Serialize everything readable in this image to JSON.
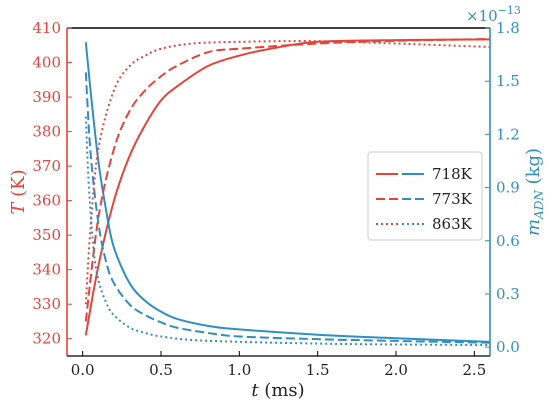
{
  "chart_data": {
    "type": "line",
    "x_label": "t",
    "x_unit": "(ms)",
    "y_left_label": "T",
    "y_left_unit": "(K)",
    "y_right_label": "m",
    "y_right_subscript": "ADN",
    "y_right_unit": "(kg)",
    "y_right_scale_base": "×10",
    "y_right_scale_exp": "−13",
    "xlim": [
      -0.1,
      2.6
    ],
    "ylim_left": [
      315,
      410
    ],
    "ylim_right": [
      -0.05,
      1.8
    ],
    "x_ticks": [
      "0.0",
      "0.5",
      "1.0",
      "1.5",
      "2.0",
      "2.5"
    ],
    "x_tick_values": [
      0,
      0.5,
      1.0,
      1.5,
      2.0,
      2.5
    ],
    "y_left_ticks": [
      "320",
      "330",
      "340",
      "350",
      "360",
      "370",
      "380",
      "390",
      "400",
      "410"
    ],
    "y_left_tick_values": [
      320,
      330,
      340,
      350,
      360,
      370,
      380,
      390,
      400,
      410
    ],
    "y_right_ticks": [
      "0.0",
      "0.3",
      "0.6",
      "0.9",
      "1.2",
      "1.5",
      "1.8"
    ],
    "y_right_tick_values": [
      0,
      0.3,
      0.6,
      0.9,
      1.2,
      1.5,
      1.8
    ],
    "colors": {
      "temperature": "#e8433a",
      "mass": "#2f8fc4"
    },
    "legend_position": "center-right",
    "series": [
      {
        "name": "718K",
        "style": "solid",
        "temperature": {
          "x": [
            0.02,
            0.1,
            0.2,
            0.3,
            0.4,
            0.5,
            0.6,
            0.8,
            1.0,
            1.2,
            1.5,
            2.0,
            2.6
          ],
          "y": [
            321,
            341,
            360,
            373,
            382,
            389,
            393,
            399,
            402,
            404,
            406,
            406.5,
            406.7
          ]
        },
        "mass": {
          "x": [
            0.02,
            0.05,
            0.1,
            0.15,
            0.2,
            0.3,
            0.4,
            0.5,
            0.6,
            0.8,
            1.0,
            1.5,
            2.0,
            2.6
          ],
          "y": [
            1.72,
            1.45,
            1.05,
            0.77,
            0.56,
            0.36,
            0.26,
            0.2,
            0.16,
            0.12,
            0.1,
            0.07,
            0.05,
            0.03
          ]
        }
      },
      {
        "name": "773K",
        "style": "dashed",
        "temperature": {
          "x": [
            0.02,
            0.1,
            0.2,
            0.3,
            0.4,
            0.5,
            0.6,
            0.8,
            1.0,
            1.5,
            2.0,
            2.6
          ],
          "y": [
            325,
            355,
            375,
            386,
            392,
            396,
            399,
            403,
            404,
            405.5,
            406.3,
            406.8
          ]
        },
        "mass": {
          "x": [
            0.02,
            0.05,
            0.1,
            0.15,
            0.2,
            0.3,
            0.4,
            0.5,
            0.6,
            0.8,
            1.0,
            1.5,
            2.0,
            2.6
          ],
          "y": [
            1.55,
            1.1,
            0.7,
            0.48,
            0.36,
            0.24,
            0.18,
            0.14,
            0.11,
            0.08,
            0.06,
            0.045,
            0.035,
            0.025
          ]
        }
      },
      {
        "name": "863K",
        "style": "dotted",
        "temperature": {
          "x": [
            0.02,
            0.05,
            0.1,
            0.2,
            0.3,
            0.4,
            0.5,
            0.7,
            1.0,
            1.5,
            2.0,
            2.6
          ],
          "y": [
            330,
            352,
            375,
            392,
            399,
            402,
            404,
            405.5,
            406,
            406.2,
            405.5,
            404.5
          ]
        },
        "mass": {
          "x": [
            0.02,
            0.04,
            0.07,
            0.1,
            0.15,
            0.2,
            0.3,
            0.4,
            0.5,
            0.7,
            1.0,
            1.5,
            2.0,
            2.6
          ],
          "y": [
            1.3,
            0.9,
            0.55,
            0.38,
            0.25,
            0.18,
            0.11,
            0.08,
            0.06,
            0.04,
            0.03,
            0.02,
            0.015,
            0.012
          ]
        }
      }
    ]
  }
}
